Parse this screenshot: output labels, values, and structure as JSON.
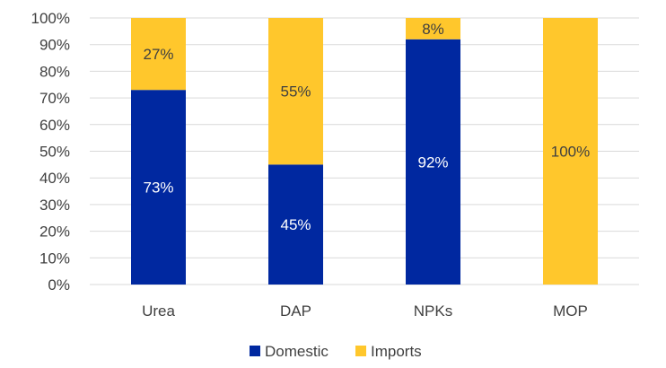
{
  "chart_data": {
    "type": "bar",
    "stacked": true,
    "categories": [
      "Urea",
      "DAP",
      "NPKs",
      "MOP"
    ],
    "series": [
      {
        "name": "Domestic",
        "values": [
          73,
          45,
          92,
          0
        ],
        "labels": [
          "73%",
          "45%",
          "92%",
          ""
        ],
        "color": "#0028a0",
        "label_color": "#ffffff"
      },
      {
        "name": "Imports",
        "values": [
          27,
          55,
          8,
          100
        ],
        "labels": [
          "27%",
          "55%",
          "8%",
          "100%"
        ],
        "color": "#ffc72c",
        "label_color": "#404040"
      }
    ],
    "ylim": [
      0,
      100
    ],
    "yticks": [
      "0%",
      "10%",
      "20%",
      "30%",
      "40%",
      "50%",
      "60%",
      "70%",
      "80%",
      "90%",
      "100%"
    ],
    "grid": true,
    "legend_position": "bottom"
  }
}
